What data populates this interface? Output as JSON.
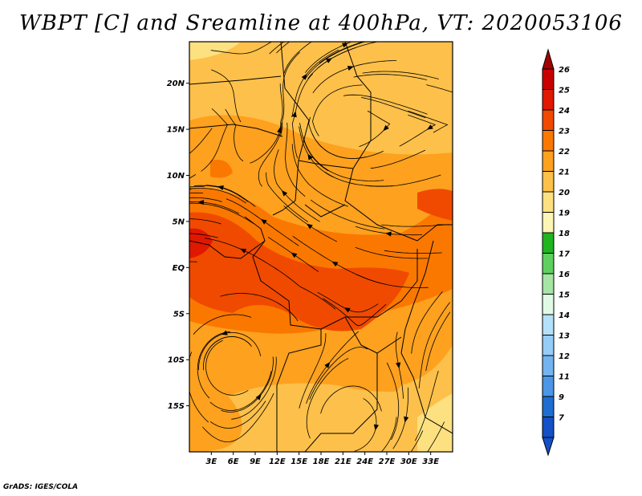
{
  "title": "WBPT [C] and Sreamline at 400hPa, VT: 2020053106",
  "footer": "GrADS: IGES/COLA",
  "map": {
    "lat_range": [
      -20,
      24.5
    ],
    "lon_range": [
      0,
      36
    ],
    "lat_ticks": [
      {
        "value": 20,
        "label": "20N"
      },
      {
        "value": 15,
        "label": "15N"
      },
      {
        "value": 10,
        "label": "10N"
      },
      {
        "value": 5,
        "label": "5N"
      },
      {
        "value": 0,
        "label": "EQ"
      },
      {
        "value": -5,
        "label": "5S"
      },
      {
        "value": -10,
        "label": "10S"
      },
      {
        "value": -15,
        "label": "15S"
      }
    ],
    "lon_ticks": [
      {
        "value": 3,
        "label": "3E"
      },
      {
        "value": 6,
        "label": "6E"
      },
      {
        "value": 9,
        "label": "9E"
      },
      {
        "value": 12,
        "label": "12E"
      },
      {
        "value": 15,
        "label": "15E"
      },
      {
        "value": 18,
        "label": "18E"
      },
      {
        "value": 21,
        "label": "21E"
      },
      {
        "value": 24,
        "label": "24E"
      },
      {
        "value": 27,
        "label": "27E"
      },
      {
        "value": 30,
        "label": "30E"
      },
      {
        "value": 33,
        "label": "33E"
      }
    ]
  },
  "colorbar": {
    "levels": [
      {
        "label": "26",
        "color": "#a50000"
      },
      {
        "label": "25",
        "color": "#c80000"
      },
      {
        "label": "24",
        "color": "#e11800"
      },
      {
        "label": "23",
        "color": "#f04a00"
      },
      {
        "label": "22",
        "color": "#fa7800"
      },
      {
        "label": "21",
        "color": "#fda11e"
      },
      {
        "label": "20",
        "color": "#fdc04a"
      },
      {
        "label": "19",
        "color": "#fde080"
      },
      {
        "label": "18",
        "color": "#fdf5b4"
      },
      {
        "label": "17",
        "color": "#1fb51f"
      },
      {
        "label": "16",
        "color": "#5fd05f"
      },
      {
        "label": "15",
        "color": "#a5e6a5"
      },
      {
        "label": "14",
        "color": "#e1fae6"
      },
      {
        "label": "13",
        "color": "#b4e1fa"
      },
      {
        "label": "12",
        "color": "#96cdf8"
      },
      {
        "label": "11",
        "color": "#73b4f0"
      },
      {
        "label": "9",
        "color": "#4b96e6"
      },
      {
        "label": "7",
        "color": "#1e6ed2"
      }
    ],
    "below_color": "#1450c8"
  }
}
